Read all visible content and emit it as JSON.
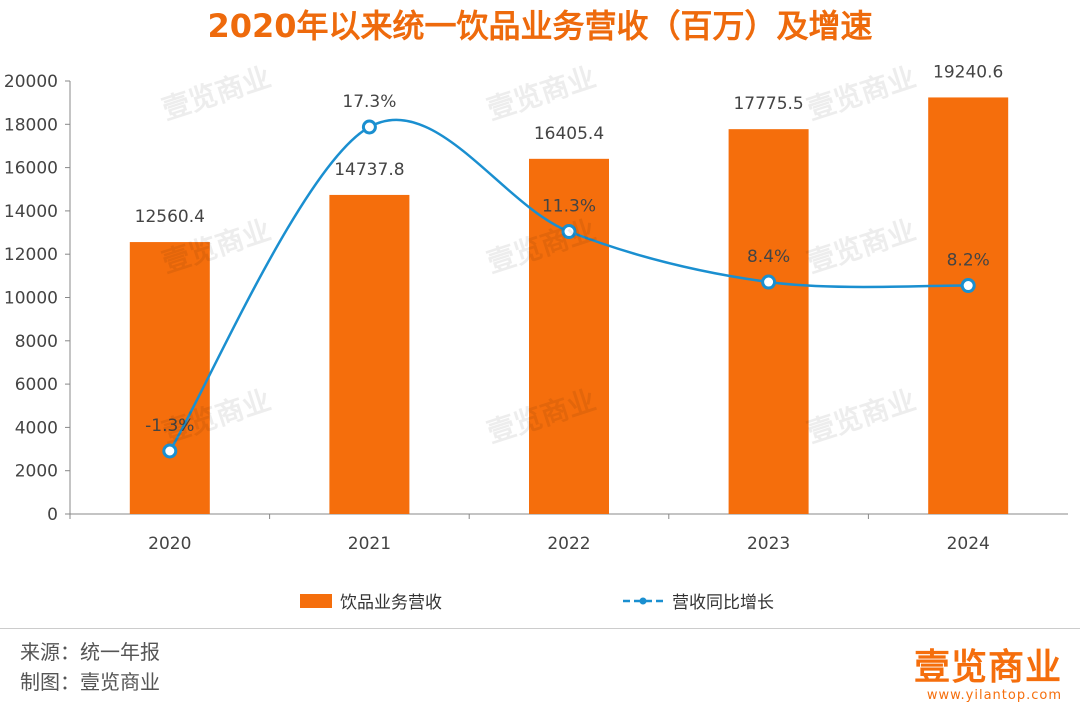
{
  "title": "2020年以来统一饮品业务营收（百万）及增速",
  "colors": {
    "title": "#ee6a0c",
    "bar": "#f56e0c",
    "line": "#1a8fd0",
    "marker_fill": "#ffffff",
    "axis": "#888888",
    "brand": "#f56e0c"
  },
  "chart_data": {
    "type": "bar",
    "categories": [
      "2020",
      "2021",
      "2022",
      "2023",
      "2024"
    ],
    "series": [
      {
        "name": "饮品业务营收",
        "type": "bar",
        "axis": "left",
        "values": [
          12560.4,
          14737.8,
          16405.4,
          17775.5,
          19240.6
        ],
        "labels": [
          "12560.4",
          "14737.8",
          "16405.4",
          "17775.5",
          "19240.6"
        ]
      },
      {
        "name": "营收同比增长",
        "type": "line",
        "style": "smooth line with hollow circular markers",
        "values": [
          -1.3,
          17.3,
          11.3,
          8.4,
          8.2
        ],
        "labels": [
          "-1.3%",
          "17.3%",
          "11.3%",
          "8.4%",
          "8.2%"
        ]
      }
    ],
    "ylim": [
      0,
      20000
    ],
    "yticks": [
      "0",
      "2000",
      "4000",
      "6000",
      "8000",
      "10000",
      "12000",
      "14000",
      "16000",
      "18000",
      "20000"
    ],
    "legend_position": "bottom",
    "grid": false
  },
  "legend": {
    "bar_label": "饮品业务营收",
    "line_label": "营收同比增长"
  },
  "footer": {
    "source": "来源：统一年报",
    "credit": "制图：壹览商业"
  },
  "brand": {
    "logo_text": "壹览商业",
    "url": "www.yilantop.com"
  },
  "watermark_text": "壹览商业"
}
